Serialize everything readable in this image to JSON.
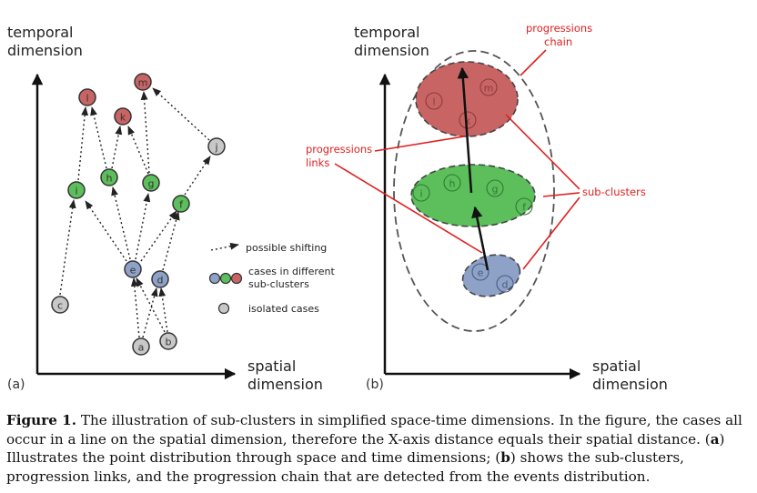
{
  "panel_a": {
    "axis_y_label": [
      "temporal",
      "dimension"
    ],
    "axis_x_label": [
      "spatial",
      "dimension"
    ],
    "panel_label": "(a)",
    "nodes": {
      "a": "a",
      "b": "b",
      "c": "c",
      "d": "d",
      "e": "e",
      "f": "f",
      "g": "g",
      "h": "h",
      "i": "i",
      "j": "j",
      "k": "k",
      "l": "l",
      "m": "m"
    },
    "legend": {
      "shifting": "possible shifting",
      "subclusters": [
        "cases in different",
        "sub-clusters"
      ],
      "isolated": "isolated cases"
    }
  },
  "panel_b": {
    "axis_y_label": [
      "temporal",
      "dimension"
    ],
    "axis_x_label": [
      "spatial",
      "dimension"
    ],
    "panel_label": "(b)",
    "nodes": {
      "l": "l",
      "m": "m",
      "k": "k",
      "i": "i",
      "h": "h",
      "g": "g",
      "f": "f",
      "e": "e",
      "d": "d"
    },
    "annotations": {
      "chain": [
        "progressions",
        "chain"
      ],
      "links": [
        "progressions",
        "links"
      ],
      "subclusters": "sub-clusters"
    }
  },
  "colors": {
    "red_cluster": "#c96464",
    "green_cluster": "#5cbf5c",
    "blue_cluster": "#8ea2c8",
    "isolated": "#c8c8c8",
    "annotation": "#e02020"
  },
  "caption": {
    "label": "Figure 1.",
    "text_1": " The illustration of sub-clusters in simplified space-time dimensions. In the figure, the cases all occur in a line on the spatial dimension, therefore the X-axis distance equals their spatial distance. (",
    "a": "a",
    "text_2": ") Illustrates the point distribution through space and time dimensions; (",
    "b": "b",
    "text_3": ") shows the sub-clusters, progression links, and the progression chain that are detected from the events distribution."
  }
}
